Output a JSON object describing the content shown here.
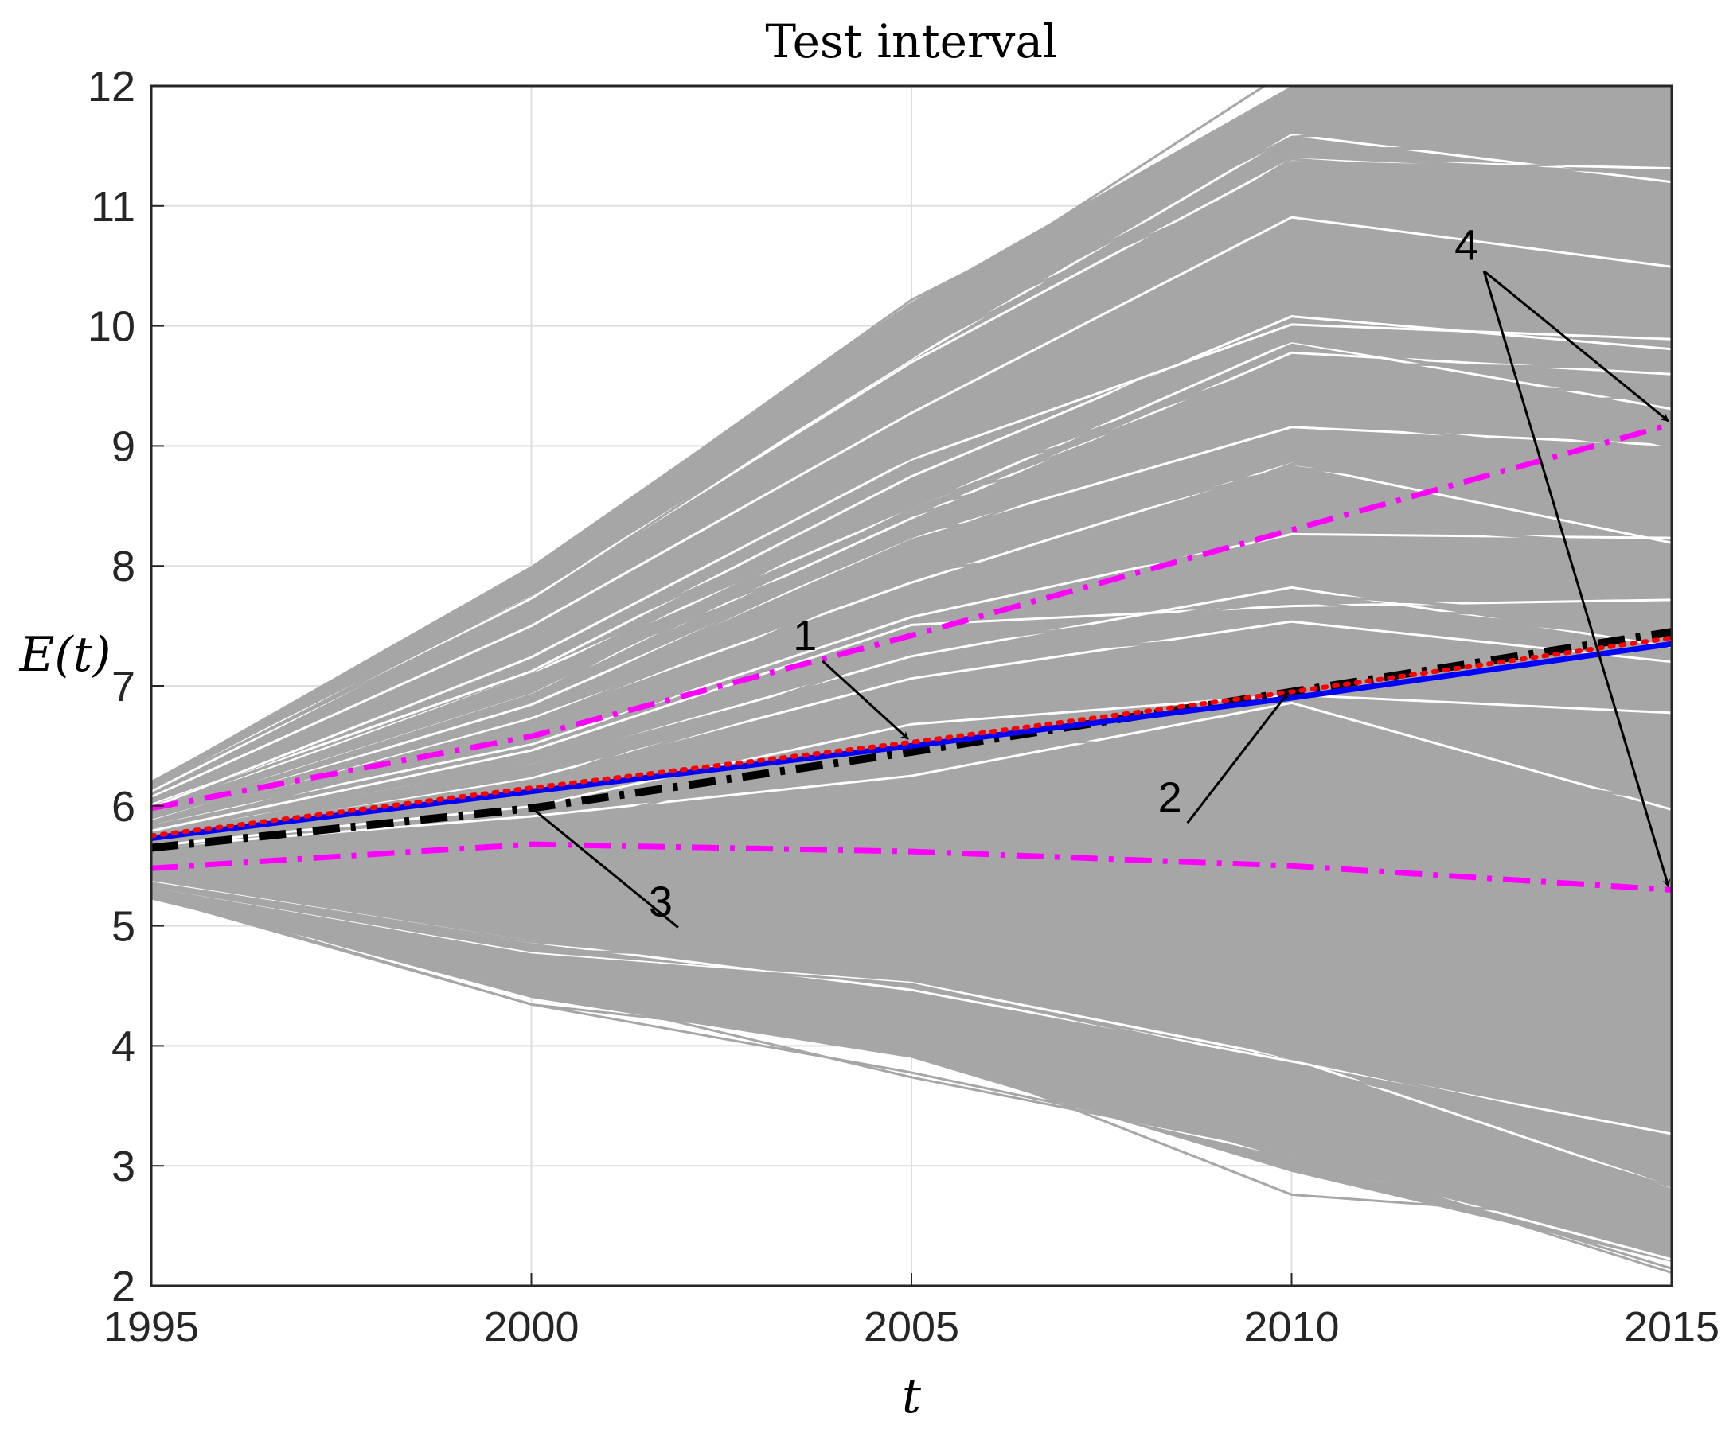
{
  "chart_data": {
    "type": "line",
    "title": "Test interval",
    "xlabel": "t",
    "ylabel": "E(t)",
    "xlim": [
      1995,
      2015
    ],
    "ylim": [
      2,
      12
    ],
    "xticks": [
      "1995",
      "2000",
      "2005",
      "2010",
      "2015"
    ],
    "yticks": [
      "2",
      "3",
      "4",
      "5",
      "6",
      "7",
      "8",
      "9",
      "10",
      "11",
      "12"
    ],
    "grid": true,
    "legend": "none",
    "series": [
      {
        "role": "realizations",
        "color": "#a6a6a6",
        "style": "solid",
        "envelope": {
          "x": [
            1995,
            2000,
            2005,
            2010,
            2015
          ],
          "upper": [
            6.2,
            8.0,
            10.2,
            12,
            12
          ],
          "lower": [
            5.25,
            4.4,
            3.9,
            2.95,
            2.2
          ]
        }
      },
      {
        "color": "#ff00ff",
        "style": "dashdot",
        "x": [
          1995,
          2000,
          2005,
          2010,
          2015
        ],
        "y": [
          5.98,
          6.58,
          7.42,
          8.3,
          9.18
        ]
      },
      {
        "color": "#ff00ff",
        "style": "dashdot",
        "x": [
          1995,
          2000,
          2005,
          2010,
          2015
        ],
        "y": [
          5.48,
          5.68,
          5.62,
          5.5,
          5.3
        ]
      },
      {
        "color": "#0000ff",
        "style": "solid",
        "x": [
          1995,
          2000,
          2005,
          2010,
          2015
        ],
        "y": [
          5.73,
          6.12,
          6.5,
          6.9,
          7.35
        ]
      },
      {
        "color": "#ff0000",
        "style": "dotted",
        "x": [
          1995,
          2000,
          2005,
          2010,
          2015
        ],
        "y": [
          5.75,
          6.15,
          6.53,
          6.95,
          7.4
        ]
      },
      {
        "color": "#000000",
        "style": "dashdot",
        "x": [
          1995,
          2000,
          2005,
          2010,
          2015
        ],
        "y": [
          5.65,
          5.98,
          6.45,
          6.95,
          7.45
        ]
      }
    ],
    "annotations": [
      {
        "text": "1",
        "x": 2003.6,
        "y": 7.3,
        "arrow_to": [
          2005,
          6.53
        ]
      },
      {
        "text": "2",
        "x": 2008.4,
        "y": 5.95,
        "arrow_to": [
          2010,
          6.92
        ]
      },
      {
        "text": "3",
        "x": 2001.7,
        "y": 5.08,
        "arrow_to": [
          2000,
          5.98
        ]
      },
      {
        "text": "4",
        "x": 2012.3,
        "y": 10.55,
        "arrow_to": [
          [
            2015,
            9.18
          ],
          [
            2015,
            5.3
          ]
        ]
      }
    ]
  }
}
